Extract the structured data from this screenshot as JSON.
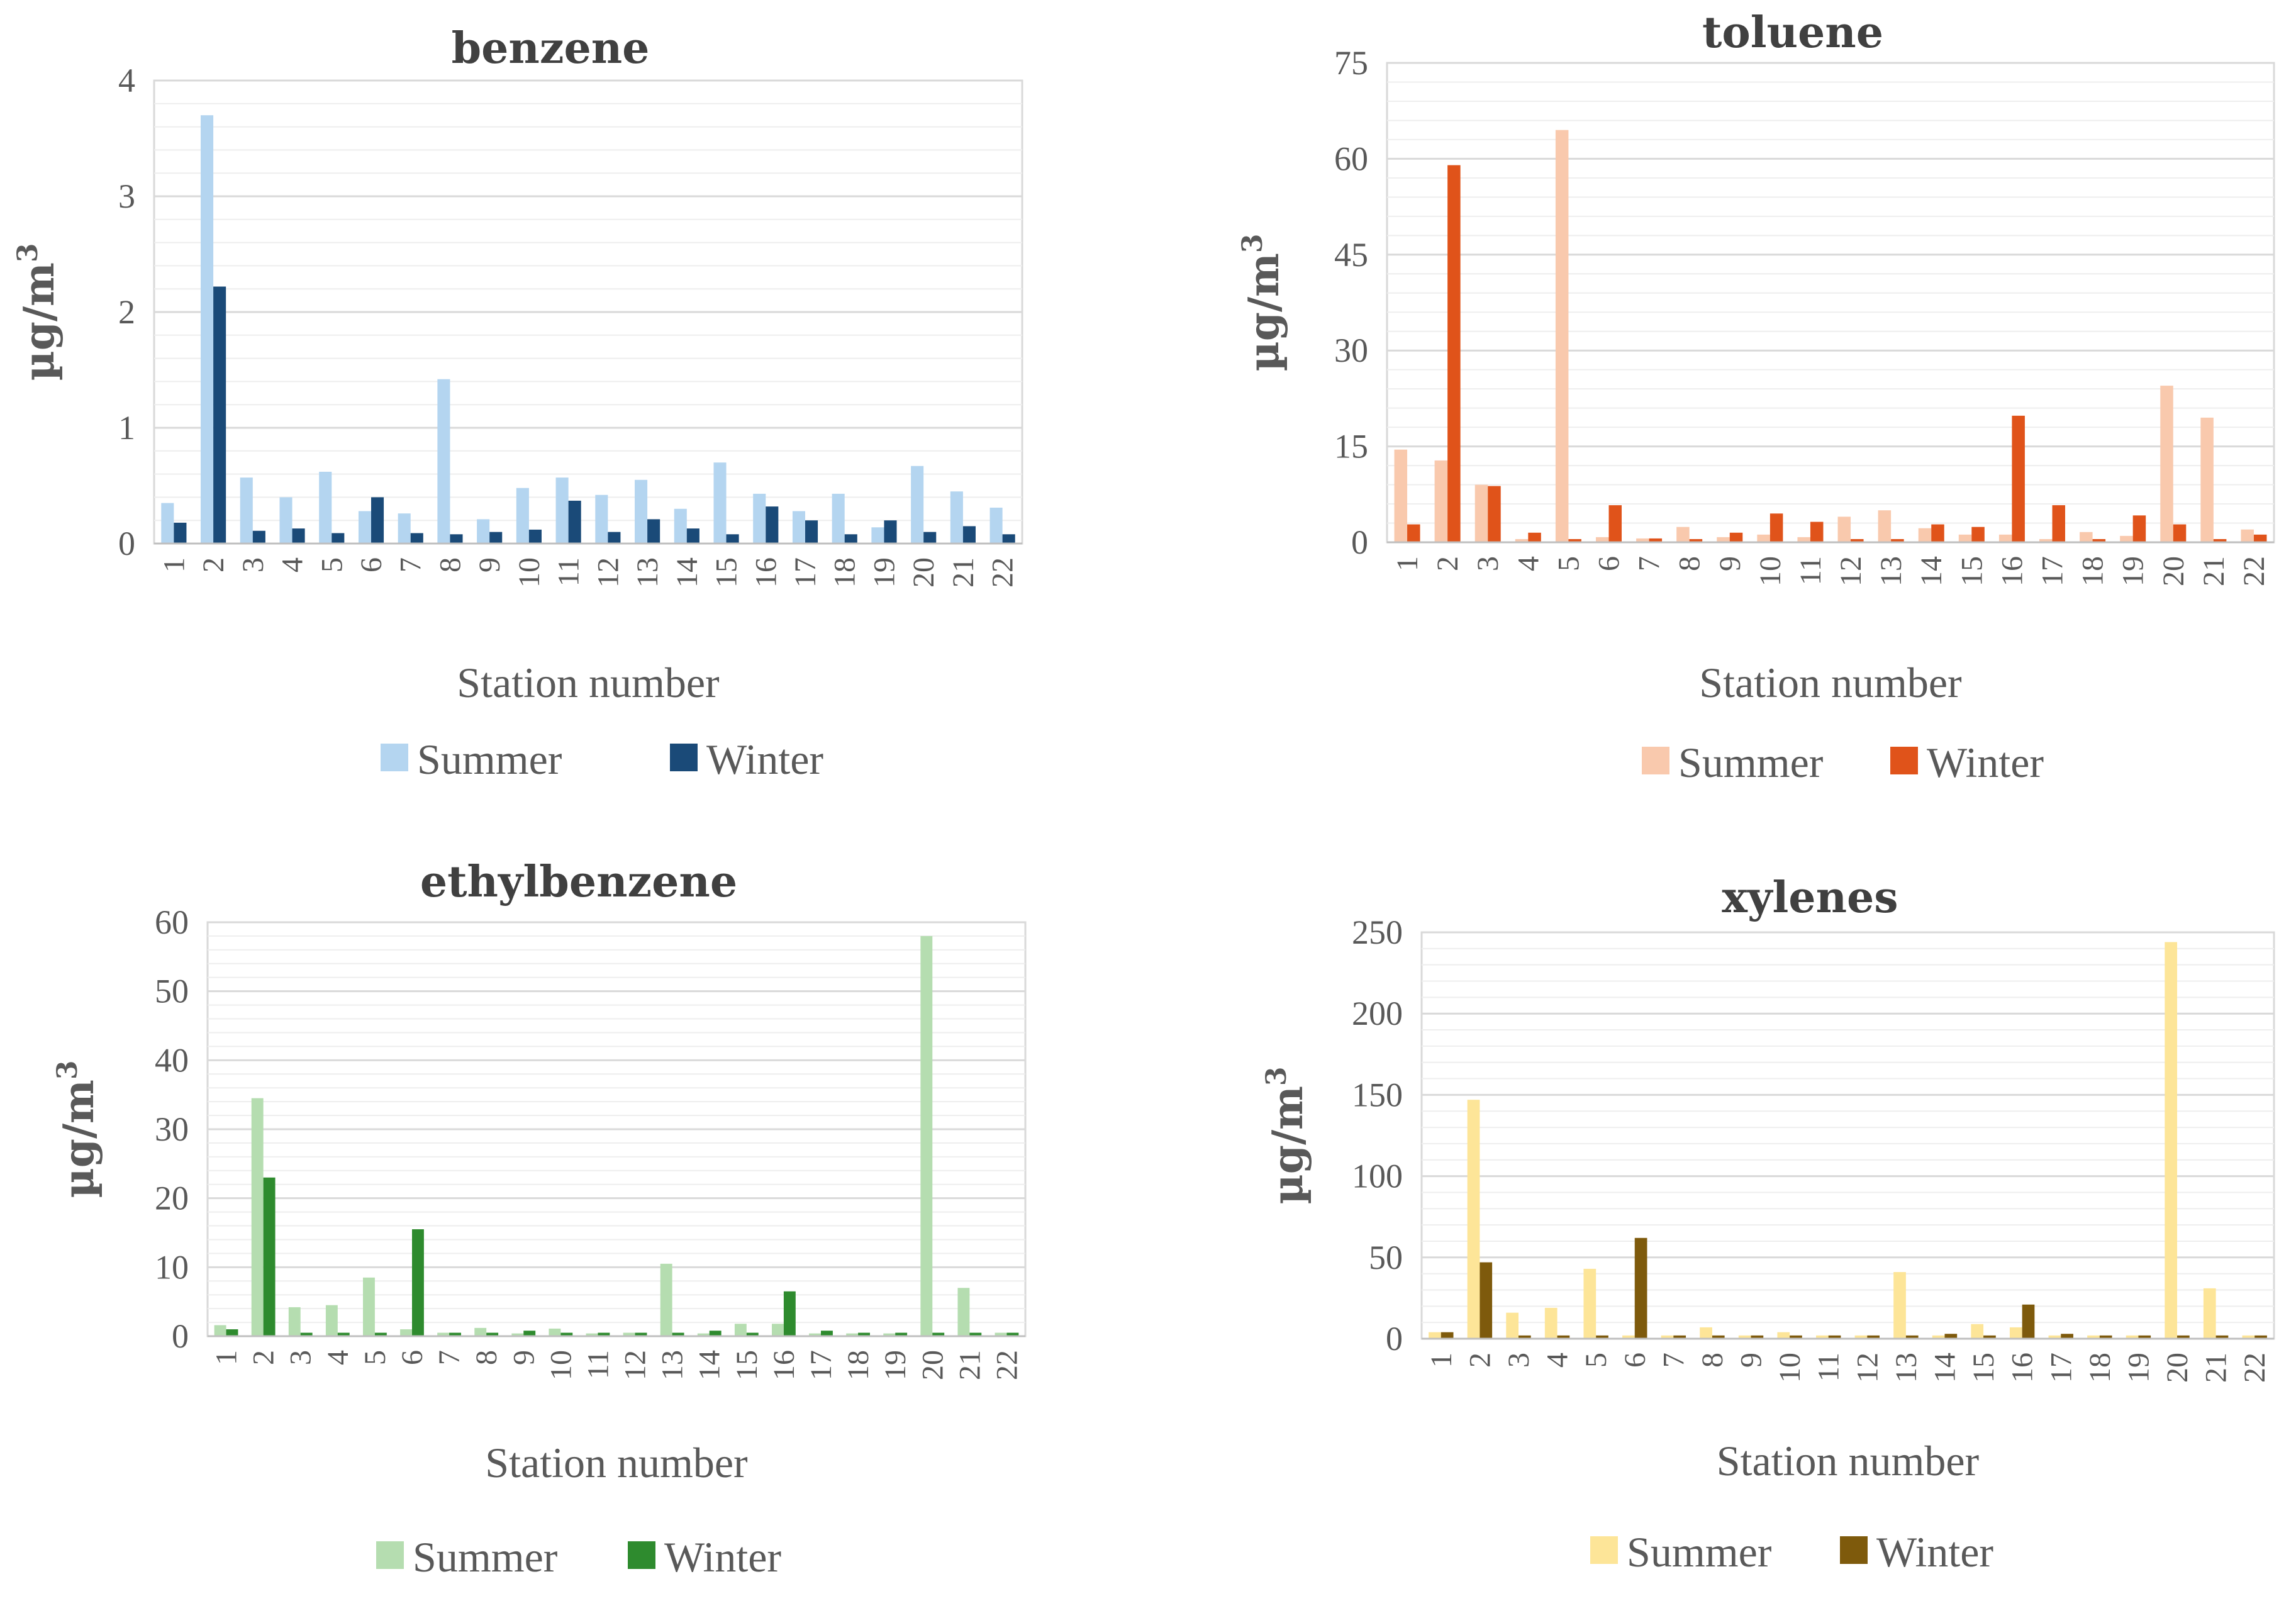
{
  "chart_data": [
    {
      "type": "bar",
      "title": "benzene",
      "xlabel": "Station number",
      "ylabel": "µg/m",
      "ylabel_superscript": "3",
      "ylim": [
        0,
        4
      ],
      "yticks": [
        0,
        1,
        2,
        3,
        4
      ],
      "categories": [
        "1",
        "2",
        "3",
        "4",
        "5",
        "6",
        "7",
        "8",
        "9",
        "10",
        "11",
        "12",
        "13",
        "14",
        "15",
        "16",
        "17",
        "18",
        "19",
        "20",
        "21",
        "22"
      ],
      "series": [
        {
          "name": "Summer",
          "color": "#b4d5f0",
          "values": [
            0.35,
            3.7,
            0.57,
            0.4,
            0.62,
            0.28,
            0.26,
            1.42,
            0.21,
            0.48,
            0.57,
            0.42,
            0.55,
            0.3,
            0.7,
            0.43,
            0.28,
            0.43,
            0.14,
            0.67,
            0.45,
            0.31
          ]
        },
        {
          "name": "Winter",
          "color": "#1a4a78",
          "values": [
            0.18,
            2.22,
            0.11,
            0.13,
            0.09,
            0.4,
            0.09,
            0.08,
            0.1,
            0.12,
            0.37,
            0.1,
            0.21,
            0.13,
            0.08,
            0.32,
            0.2,
            0.08,
            0.2,
            0.1,
            0.15,
            0.08
          ]
        }
      ],
      "legend": [
        "Summer",
        "Winter"
      ]
    },
    {
      "type": "bar",
      "title": "toluene",
      "xlabel": "Station number",
      "ylabel": "µg/m",
      "ylabel_superscript": "3",
      "ylim": [
        0,
        75
      ],
      "yticks": [
        0,
        15,
        30,
        45,
        60,
        75
      ],
      "categories": [
        "1",
        "2",
        "3",
        "4",
        "5",
        "6",
        "7",
        "8",
        "9",
        "10",
        "11",
        "12",
        "13",
        "14",
        "15",
        "16",
        "17",
        "18",
        "19",
        "20",
        "21",
        "22"
      ],
      "series": [
        {
          "name": "Summer",
          "color": "#f9c9ad",
          "values": [
            14.5,
            12.8,
            9.0,
            0.5,
            64.5,
            0.8,
            0.6,
            2.4,
            0.8,
            1.2,
            0.8,
            4.0,
            5.0,
            2.2,
            1.2,
            1.2,
            0.5,
            1.6,
            1.0,
            24.5,
            19.5,
            2.0
          ]
        },
        {
          "name": "Winter",
          "color": "#e0531a",
          "values": [
            2.8,
            59.0,
            8.8,
            1.5,
            0.5,
            5.8,
            0.6,
            0.5,
            1.5,
            4.5,
            3.2,
            0.5,
            0.5,
            2.8,
            2.4,
            19.8,
            5.8,
            0.5,
            4.2,
            2.8,
            0.5,
            1.2
          ]
        }
      ],
      "legend": [
        "Summer",
        "Winter"
      ]
    },
    {
      "type": "bar",
      "title": "ethylbenzene",
      "xlabel": "Station number",
      "ylabel": "µg/m",
      "ylabel_superscript": "3",
      "ylim": [
        0,
        60
      ],
      "yticks": [
        0,
        10,
        20,
        30,
        40,
        50,
        60
      ],
      "categories": [
        "1",
        "2",
        "3",
        "4",
        "5",
        "6",
        "7",
        "8",
        "9",
        "10",
        "11",
        "12",
        "13",
        "14",
        "15",
        "16",
        "17",
        "18",
        "19",
        "20",
        "21",
        "22"
      ],
      "series": [
        {
          "name": "Summer",
          "color": "#b5ddb0",
          "values": [
            1.6,
            34.5,
            4.2,
            4.5,
            8.5,
            1.0,
            0.5,
            1.2,
            0.4,
            1.1,
            0.4,
            0.5,
            10.5,
            0.4,
            1.8,
            1.8,
            0.4,
            0.4,
            0.4,
            58.0,
            7.0,
            0.5
          ]
        },
        {
          "name": "Winter",
          "color": "#2e8b2e",
          "values": [
            1.0,
            23.0,
            0.5,
            0.5,
            0.5,
            15.5,
            0.5,
            0.5,
            0.8,
            0.5,
            0.5,
            0.5,
            0.5,
            0.8,
            0.5,
            6.5,
            0.8,
            0.5,
            0.5,
            0.5,
            0.5,
            0.5
          ]
        }
      ],
      "legend": [
        "Summer",
        "Winter"
      ]
    },
    {
      "type": "bar",
      "title": "xylenes",
      "xlabel": "Station number",
      "ylabel": "µg/m",
      "ylabel_superscript": "3",
      "ylim": [
        0,
        250
      ],
      "yticks": [
        0,
        50,
        100,
        150,
        200,
        250
      ],
      "categories": [
        "1",
        "2",
        "3",
        "4",
        "5",
        "6",
        "7",
        "8",
        "9",
        "10",
        "11",
        "12",
        "13",
        "14",
        "15",
        "16",
        "17",
        "18",
        "19",
        "20",
        "21",
        "22"
      ],
      "series": [
        {
          "name": "Summer",
          "color": "#fde598",
          "values": [
            4.0,
            147.0,
            16.0,
            19.0,
            43.0,
            2.0,
            2.0,
            7.0,
            2.0,
            4.0,
            2.0,
            2.0,
            41.0,
            2.0,
            9.0,
            7.0,
            2.0,
            2.0,
            2.0,
            244.0,
            31.0,
            2.0
          ]
        },
        {
          "name": "Winter",
          "color": "#7e5a0c",
          "values": [
            4.0,
            47.0,
            2.0,
            2.0,
            2.0,
            62.0,
            2.0,
            2.0,
            2.0,
            2.0,
            2.0,
            2.0,
            2.0,
            3.0,
            2.0,
            21.0,
            3.0,
            2.0,
            2.0,
            2.0,
            2.0,
            2.0
          ]
        }
      ],
      "legend": [
        "Summer",
        "Winter"
      ]
    }
  ]
}
